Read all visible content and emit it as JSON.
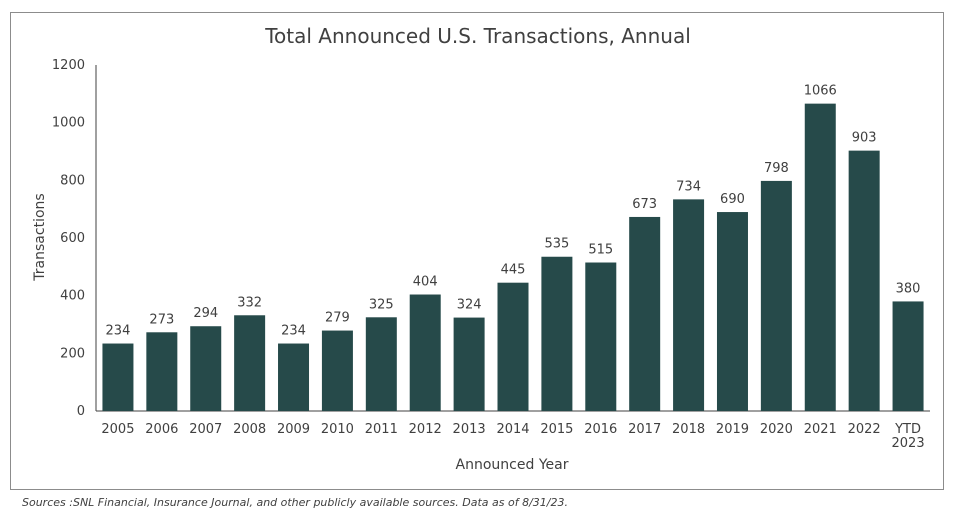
{
  "chart_data": {
    "type": "bar",
    "title": "Total Announced U.S. Transactions, Annual",
    "xlabel": "Announced Year",
    "ylabel": "Transactions",
    "ylim": [
      0,
      1200
    ],
    "yticks": [
      0,
      200,
      400,
      600,
      800,
      1000,
      1200
    ],
    "grid": false,
    "categories": [
      "2005",
      "2006",
      "2007",
      "2008",
      "2009",
      "2010",
      "2011",
      "2012",
      "2013",
      "2014",
      "2015",
      "2016",
      "2017",
      "2018",
      "2019",
      "2020",
      "2021",
      "2022",
      "YTD 2023"
    ],
    "values": [
      234,
      273,
      294,
      332,
      234,
      279,
      325,
      404,
      324,
      445,
      535,
      515,
      673,
      734,
      690,
      798,
      1066,
      903,
      380
    ],
    "bar_color": "#264a4a"
  },
  "source_note": "Sources :SNL Financial, Insurance Journal, and other publicly available sources. Data as of 8/31/23."
}
